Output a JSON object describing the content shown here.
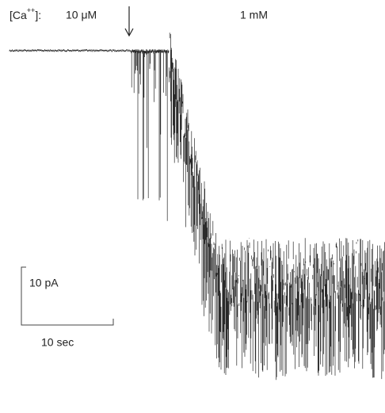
{
  "figure": {
    "concentration_label": {
      "prefix": "[Ca",
      "superscript": "++",
      "suffix": "]:"
    },
    "before": "10 μM",
    "after": "1 mM",
    "scale_current": "10 pA",
    "scale_time": "10 sec"
  }
}
